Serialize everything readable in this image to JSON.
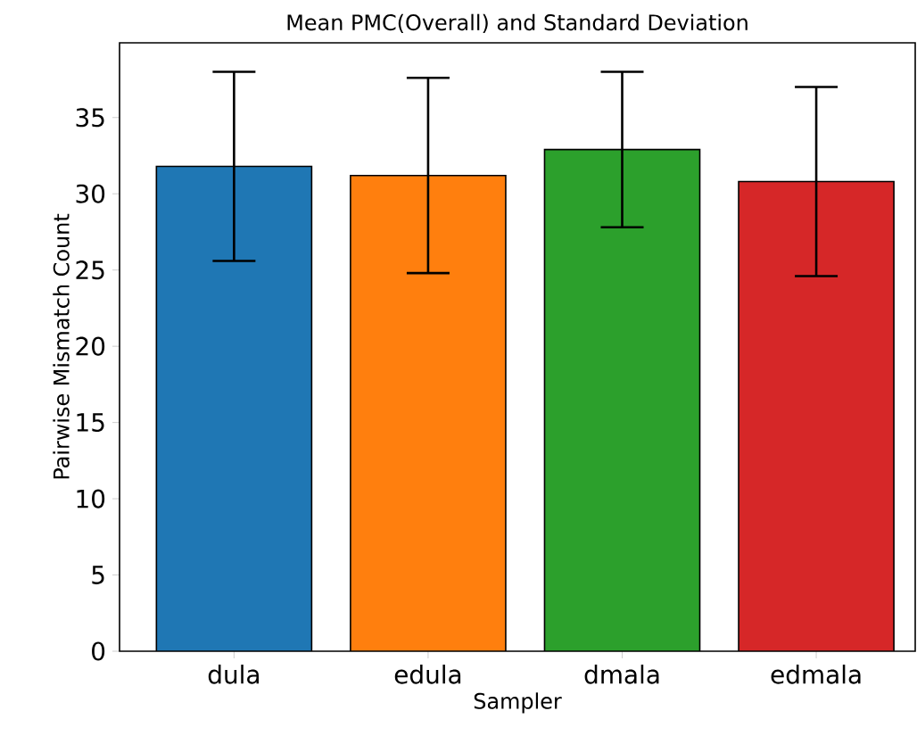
{
  "chart_data": {
    "type": "bar",
    "title": "Mean PMC(Overall) and Standard Deviation",
    "xlabel": "Sampler",
    "ylabel": "Pairwise Mismatch Count",
    "categories": [
      "dula",
      "edula",
      "dmala",
      "edmala"
    ],
    "values": [
      31.8,
      31.2,
      32.9,
      30.8
    ],
    "errors": [
      6.2,
      6.4,
      5.1,
      6.2
    ],
    "colors": [
      "#1f77b4",
      "#ff7f0e",
      "#2ca02c",
      "#d62728"
    ],
    "ylim": [
      0,
      39.9
    ],
    "yticks": [
      0,
      5,
      10,
      15,
      20,
      25,
      30,
      35
    ],
    "grid": false
  }
}
